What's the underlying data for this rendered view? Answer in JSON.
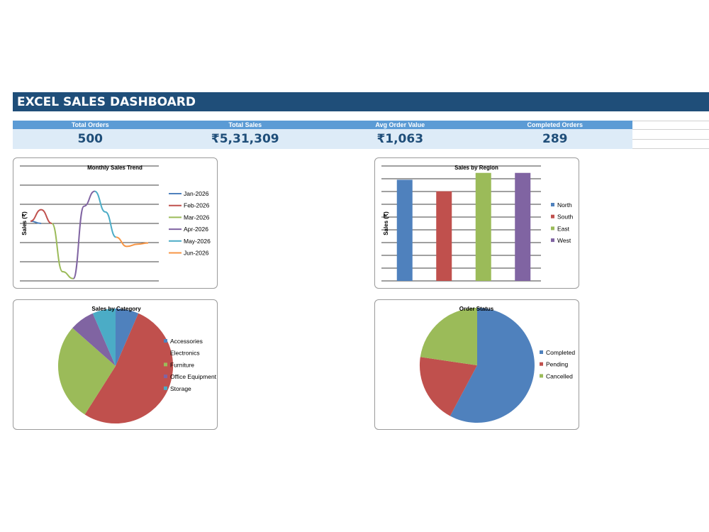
{
  "dashboard": {
    "title": "EXCEL SALES DASHBOARD"
  },
  "kpis": [
    {
      "label": "Total Orders",
      "value": "500"
    },
    {
      "label": "Total Sales",
      "value": "₹5,31,309"
    },
    {
      "label": "Avg Order Value",
      "value": "₹1,063"
    },
    {
      "label": "Completed Orders",
      "value": "289"
    }
  ],
  "colors": {
    "title_bar": "#1f4e79",
    "kpi_header": "#5b9bd5",
    "kpi_values_bg": "#ddebf7",
    "blue": "#4f81bd",
    "red": "#c0504d",
    "green": "#9bbb59",
    "purple": "#8064a2",
    "teal": "#4bacc6",
    "orange": "#f79646"
  },
  "chart_data": [
    {
      "type": "line",
      "title": "Monthly Sales Trend",
      "ylabel": "Sales (₹)",
      "grid": true,
      "legend": "right",
      "series": [
        {
          "name": "Jan-2026",
          "color": "#4f81bd",
          "points": [
            [
              0,
              0.52
            ],
            [
              1,
              0.5
            ]
          ]
        },
        {
          "name": "Feb-2026",
          "color": "#c0504d",
          "points": [
            [
              0,
              0.52
            ],
            [
              1,
              0.62
            ],
            [
              2,
              0.5
            ]
          ]
        },
        {
          "name": "Mar-2026",
          "color": "#9bbb59",
          "points": [
            [
              2,
              0.5
            ],
            [
              3,
              0.08
            ],
            [
              4,
              0.02
            ]
          ]
        },
        {
          "name": "Apr-2026",
          "color": "#8064a2",
          "points": [
            [
              4,
              0.02
            ],
            [
              5,
              0.65
            ],
            [
              6,
              0.78
            ]
          ]
        },
        {
          "name": "May-2026",
          "color": "#4bacc6",
          "points": [
            [
              6,
              0.78
            ],
            [
              7,
              0.6
            ],
            [
              8,
              0.38
            ]
          ]
        },
        {
          "name": "Jun-2026",
          "color": "#f79646",
          "points": [
            [
              8,
              0.38
            ],
            [
              9,
              0.3
            ],
            [
              10,
              0.32
            ],
            [
              11,
              0.33
            ]
          ]
        }
      ]
    },
    {
      "type": "bar",
      "title": "Sales by Region",
      "ylabel": "Sales (₹)",
      "grid": true,
      "legend": "right",
      "categories": [
        "North",
        "South",
        "East",
        "West"
      ],
      "values": [
        0.88,
        0.78,
        0.94,
        0.94
      ],
      "colors": [
        "#4f81bd",
        "#c0504d",
        "#9bbb59",
        "#8064a2"
      ]
    },
    {
      "type": "pie",
      "title": "Sales by Category",
      "legend": "right",
      "labels": [
        "Accessories",
        "Electronics",
        "Furniture",
        "Office Equipment",
        "Storage"
      ],
      "values": [
        6.5,
        52.5,
        27.5,
        7,
        6.5
      ],
      "colors": [
        "#4f81bd",
        "#c0504d",
        "#9bbb59",
        "#8064a2",
        "#4bacc6"
      ]
    },
    {
      "type": "pie",
      "title": "Order Status",
      "legend": "right",
      "labels": [
        "Completed",
        "Pending",
        "Cancelled"
      ],
      "values": [
        57.8,
        19.5,
        22.7
      ],
      "colors": [
        "#4f81bd",
        "#c0504d",
        "#9bbb59"
      ]
    }
  ]
}
